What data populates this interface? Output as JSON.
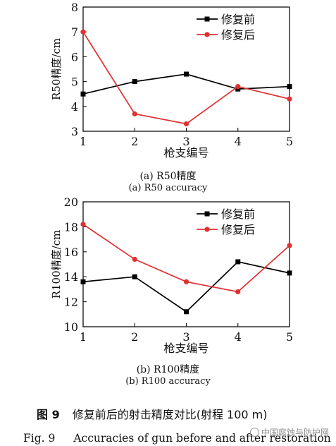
{
  "chart_data": [
    {
      "type": "line",
      "subplot_label_cn": "(a) R50精度",
      "subplot_label_en": "(a) R50 accuracy",
      "xlabel": "枪支编号",
      "ylabel": "R50精度/cm",
      "x": [
        1,
        2,
        3,
        4,
        5
      ],
      "xticks": [
        "1",
        "2",
        "3",
        "4",
        "5"
      ],
      "yticks": [
        "3",
        "4",
        "5",
        "6",
        "7",
        "8"
      ],
      "xlim": [
        1,
        5
      ],
      "ylim": [
        3,
        8
      ],
      "legend_position": "top-right",
      "series": [
        {
          "name": "修复前",
          "color": "#000000",
          "marker": "square",
          "values": [
            4.5,
            5.0,
            5.3,
            4.7,
            4.8
          ]
        },
        {
          "name": "修复后",
          "color": "#e03030",
          "marker": "circle",
          "values": [
            7.0,
            3.7,
            3.3,
            4.8,
            4.3
          ]
        }
      ]
    },
    {
      "type": "line",
      "subplot_label_cn": "(b) R100精度",
      "subplot_label_en": "(b) R100 accuracy",
      "xlabel": "枪支编号",
      "ylabel": "R100精度/cm",
      "x": [
        1,
        2,
        3,
        4,
        5
      ],
      "xticks": [
        "1",
        "2",
        "3",
        "4",
        "5"
      ],
      "yticks": [
        "10",
        "12",
        "14",
        "16",
        "18",
        "20"
      ],
      "xlim": [
        1,
        5
      ],
      "ylim": [
        10,
        20
      ],
      "legend_position": "top-right",
      "series": [
        {
          "name": "修复前",
          "color": "#000000",
          "marker": "square",
          "values": [
            13.6,
            14.0,
            11.2,
            15.2,
            14.3
          ]
        },
        {
          "name": "修复后",
          "color": "#e03030",
          "marker": "circle",
          "values": [
            18.2,
            15.4,
            13.6,
            12.8,
            16.5
          ]
        }
      ]
    }
  ],
  "figure": {
    "number_cn": "图 9",
    "caption_cn": "修复前后的射击精度对比(射程 100 m)",
    "number_en": "Fig. 9",
    "caption_en": "Accuracies of gun before and after restoration"
  },
  "watermark": "中国腐蚀与防护网"
}
